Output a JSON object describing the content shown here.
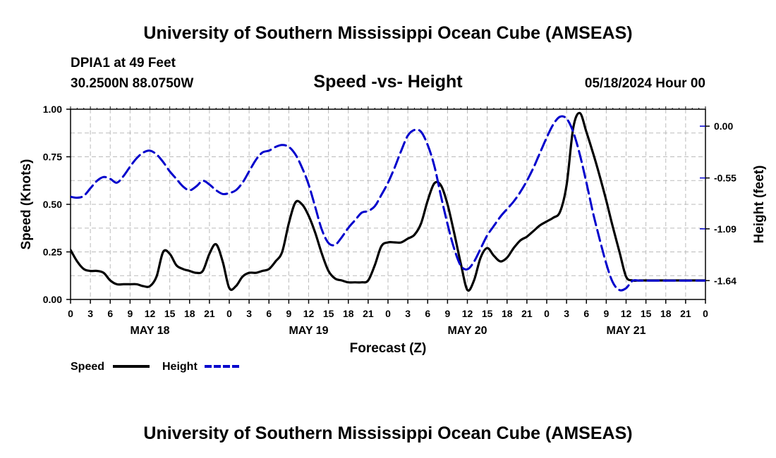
{
  "header": {
    "title": "University of Southern Mississippi Ocean Cube (AMSEAS)",
    "footer_title": "University of Southern Mississippi Ocean Cube (AMSEAS)",
    "station": "DPIA1 at 49 Feet",
    "coordinates": "30.2500N  88.0750W",
    "subtitle": "Speed -vs- Height",
    "datetime": "05/18/2024 Hour 00"
  },
  "chart_data": {
    "type": "line",
    "title": "Speed -vs- Height",
    "xlabel": "Forecast (Z)",
    "ylabel": "Speed (Knots)",
    "ylabel_right": "Height (feet)",
    "xlim": [
      0,
      96
    ],
    "ylim": [
      0,
      1.0
    ],
    "ylim_right": [
      -1.84,
      0.18
    ],
    "grid": true,
    "x_tick_labels": [
      "0",
      "3",
      "6",
      "9",
      "12",
      "15",
      "18",
      "21",
      "0",
      "3",
      "6",
      "9",
      "12",
      "15",
      "18",
      "21",
      "0",
      "3",
      "6",
      "9",
      "12",
      "15",
      "18",
      "21",
      "0",
      "3",
      "6",
      "9",
      "12",
      "15",
      "18",
      "21",
      "0"
    ],
    "day_labels": [
      {
        "label": "MAY 18",
        "hour": 12
      },
      {
        "label": "MAY 19",
        "hour": 36
      },
      {
        "label": "MAY 20",
        "hour": 60
      },
      {
        "label": "MAY 21",
        "hour": 84
      }
    ],
    "y_tick_labels": [
      "0.00",
      "0.25",
      "0.50",
      "0.75",
      "1.00"
    ],
    "y_right_tick_labels": [
      "-1.64",
      "-1.09",
      "-0.55",
      "0.00"
    ],
    "legend": [
      {
        "name": "Speed",
        "color": "#000000"
      },
      {
        "name": "Height",
        "color": "#0000cc"
      }
    ],
    "series": [
      {
        "name": "Speed",
        "axis": "left",
        "color": "#000000",
        "x": [
          0,
          1,
          2,
          3,
          4,
          5,
          6,
          7,
          8,
          9,
          10,
          11,
          12,
          13,
          14,
          15,
          16,
          17,
          18,
          19,
          20,
          21,
          22,
          23,
          24,
          25,
          26,
          27,
          28,
          29,
          30,
          31,
          32,
          33,
          34,
          35,
          36,
          37,
          38,
          39,
          40,
          41,
          42,
          43,
          44,
          45,
          46,
          47,
          48,
          49,
          50,
          51,
          52,
          53,
          54,
          55,
          56,
          57,
          58,
          59,
          60,
          61,
          62,
          63,
          64,
          65,
          66,
          67,
          68,
          69,
          70,
          71,
          72,
          73,
          74,
          75,
          76,
          77,
          78,
          79,
          80,
          81,
          82,
          83,
          84,
          85,
          86,
          87,
          88,
          89,
          90,
          91,
          92,
          93,
          94,
          95,
          96
        ],
        "values": [
          0.26,
          0.2,
          0.16,
          0.15,
          0.15,
          0.14,
          0.1,
          0.08,
          0.08,
          0.08,
          0.08,
          0.07,
          0.07,
          0.12,
          0.25,
          0.24,
          0.18,
          0.16,
          0.15,
          0.14,
          0.15,
          0.24,
          0.29,
          0.2,
          0.06,
          0.07,
          0.12,
          0.14,
          0.14,
          0.15,
          0.16,
          0.2,
          0.25,
          0.4,
          0.51,
          0.5,
          0.44,
          0.35,
          0.24,
          0.15,
          0.11,
          0.1,
          0.09,
          0.09,
          0.09,
          0.1,
          0.18,
          0.28,
          0.3,
          0.3,
          0.3,
          0.32,
          0.34,
          0.4,
          0.52,
          0.61,
          0.6,
          0.5,
          0.35,
          0.19,
          0.05,
          0.1,
          0.22,
          0.27,
          0.23,
          0.2,
          0.22,
          0.27,
          0.31,
          0.33,
          0.36,
          0.39,
          0.41,
          0.43,
          0.46,
          0.6,
          0.9,
          0.98,
          0.88,
          0.77,
          0.65,
          0.52,
          0.38,
          0.25,
          0.12,
          0.1,
          0.1,
          0.1,
          0.1,
          0.1,
          0.1,
          0.1,
          0.1,
          0.1,
          0.1,
          0.1,
          0.1
        ]
      },
      {
        "name": "Height",
        "axis": "right",
        "color": "#0000cc",
        "x": [
          0,
          1,
          2,
          3,
          4,
          5,
          6,
          7,
          8,
          9,
          10,
          11,
          12,
          13,
          14,
          15,
          16,
          17,
          18,
          19,
          20,
          21,
          22,
          23,
          24,
          25,
          26,
          27,
          28,
          29,
          30,
          31,
          32,
          33,
          34,
          35,
          36,
          37,
          38,
          39,
          40,
          41,
          42,
          43,
          44,
          45,
          46,
          47,
          48,
          49,
          50,
          51,
          52,
          53,
          54,
          55,
          56,
          57,
          58,
          59,
          60,
          61,
          62,
          63,
          64,
          65,
          66,
          67,
          68,
          69,
          70,
          71,
          72,
          73,
          74,
          75,
          76,
          77,
          78,
          79,
          80,
          81,
          82,
          83,
          84,
          85,
          86,
          87,
          88,
          89,
          90,
          91,
          92,
          93,
          94,
          95,
          96
        ],
        "values": [
          -0.75,
          -0.76,
          -0.74,
          -0.66,
          -0.58,
          -0.54,
          -0.56,
          -0.6,
          -0.53,
          -0.43,
          -0.34,
          -0.28,
          -0.26,
          -0.3,
          -0.38,
          -0.48,
          -0.56,
          -0.64,
          -0.68,
          -0.64,
          -0.58,
          -0.62,
          -0.68,
          -0.72,
          -0.71,
          -0.68,
          -0.6,
          -0.48,
          -0.36,
          -0.28,
          -0.26,
          -0.22,
          -0.2,
          -0.22,
          -0.3,
          -0.44,
          -0.62,
          -0.86,
          -1.1,
          -1.24,
          -1.26,
          -1.18,
          -1.08,
          -1.0,
          -0.92,
          -0.9,
          -0.85,
          -0.73,
          -0.6,
          -0.44,
          -0.26,
          -0.1,
          -0.04,
          -0.06,
          -0.2,
          -0.42,
          -0.74,
          -1.04,
          -1.3,
          -1.48,
          -1.52,
          -1.44,
          -1.3,
          -1.16,
          -1.06,
          -0.96,
          -0.88,
          -0.8,
          -0.7,
          -0.58,
          -0.44,
          -0.28,
          -0.12,
          0.02,
          0.1,
          0.08,
          -0.06,
          -0.3,
          -0.6,
          -0.92,
          -1.2,
          -1.46,
          -1.66,
          -1.74,
          -1.72,
          -1.64,
          -1.64,
          -1.64,
          -1.64,
          -1.64,
          -1.64,
          -1.64,
          -1.64,
          -1.64,
          -1.64,
          -1.64,
          -1.64
        ]
      }
    ]
  }
}
